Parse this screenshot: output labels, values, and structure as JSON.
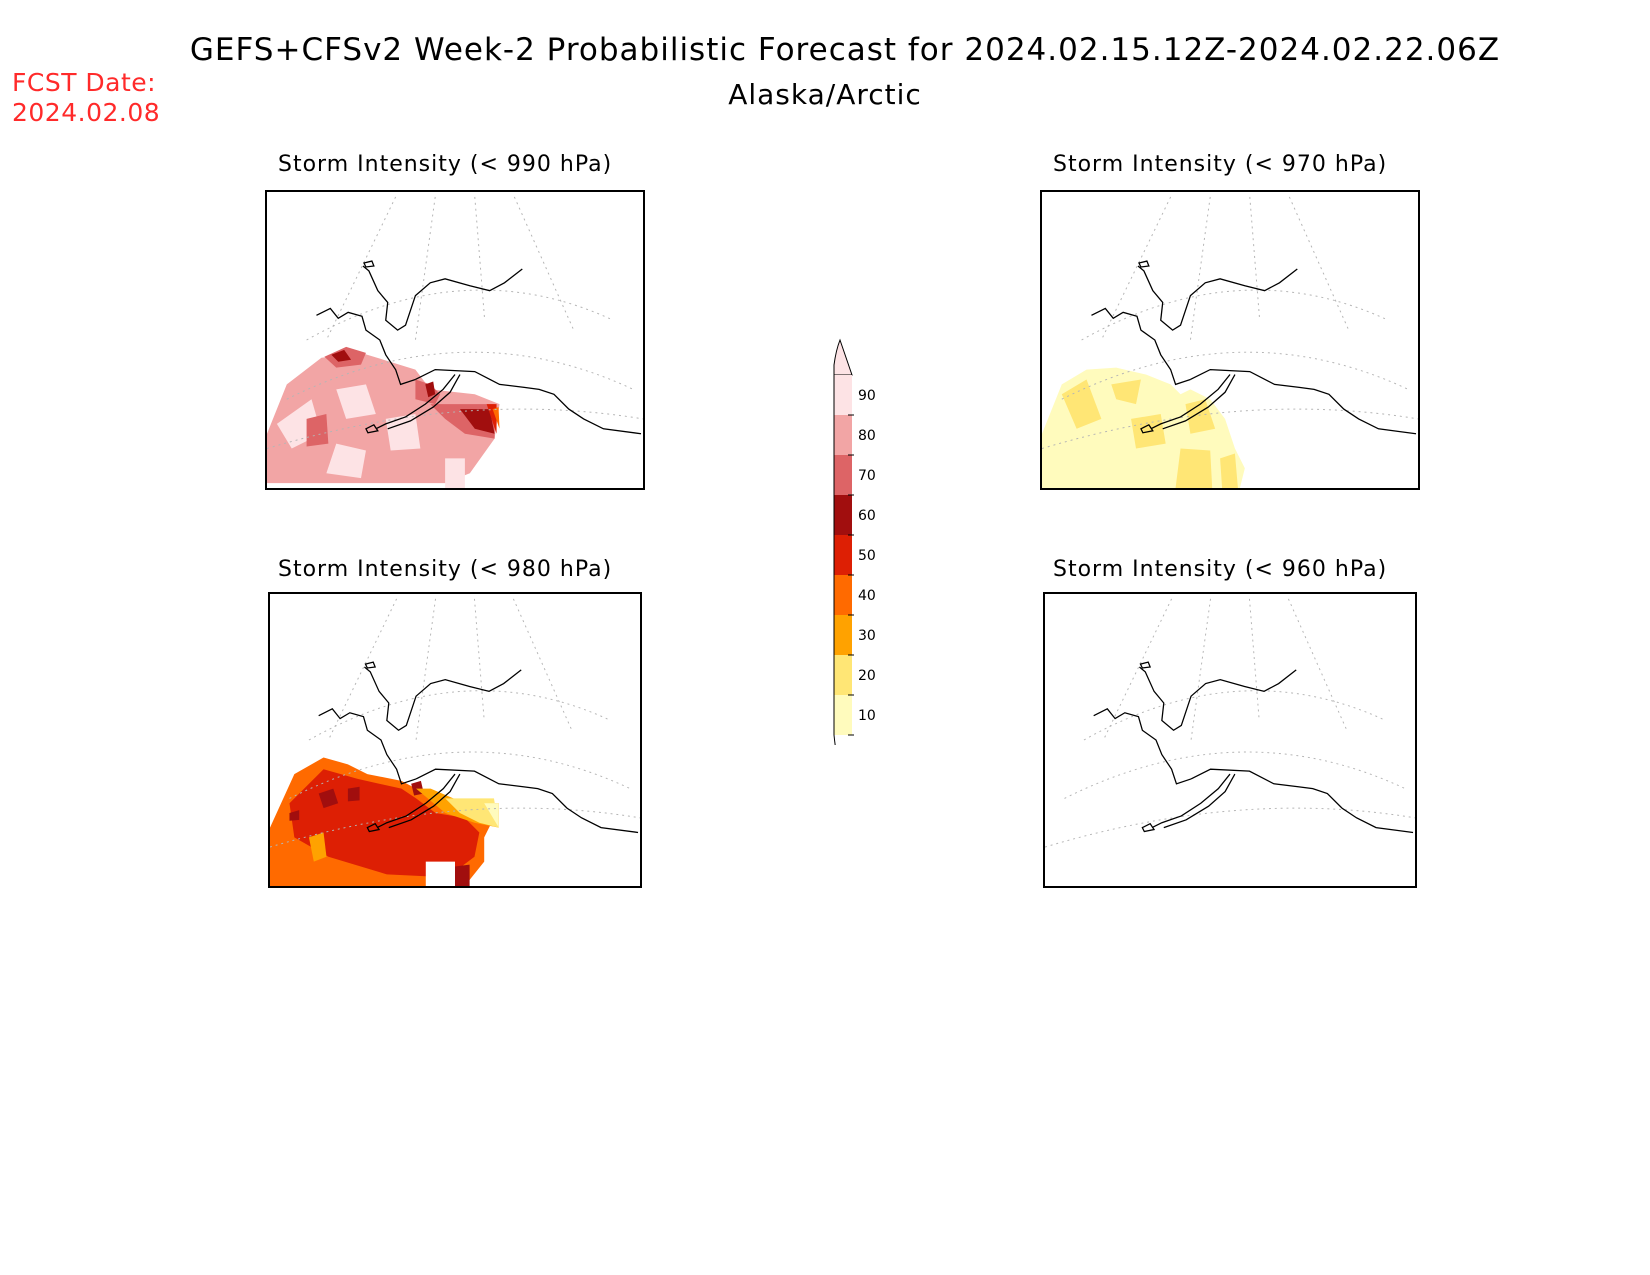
{
  "title": "GEFS+CFSv2 Week-2 Probabilistic Forecast for 2024.02.15.12Z-2024.02.22.06Z",
  "subtitle": "Alaska/Arctic",
  "fcst_date_label": "FCST Date:",
  "fcst_date_value": "2024.02.08",
  "panels": [
    {
      "title": "Storm Intensity (< 990 hPa)",
      "threshold_hPa": 990,
      "dominant_probability_range": [
        70,
        100
      ]
    },
    {
      "title": "Storm Intensity (< 970 hPa)",
      "threshold_hPa": 970,
      "dominant_probability_range": [
        10,
        30
      ]
    },
    {
      "title": "Storm Intensity (< 980 hPa)",
      "threshold_hPa": 980,
      "dominant_probability_range": [
        30,
        70
      ]
    },
    {
      "title": "Storm Intensity (< 960 hPa)",
      "threshold_hPa": 960,
      "dominant_probability_range": null
    }
  ],
  "colorbar": {
    "ticks": [
      "90",
      "80",
      "70",
      "60",
      "50",
      "40",
      "30",
      "20",
      "10"
    ],
    "colors": [
      "#fde3e5",
      "#f2a5a5",
      "#dd6466",
      "#a10e0e",
      "#dd1f04",
      "#ff6a00",
      "#ffa200",
      "#ffe675",
      "#fffbbd"
    ],
    "top_color": "#fde3e5"
  }
}
